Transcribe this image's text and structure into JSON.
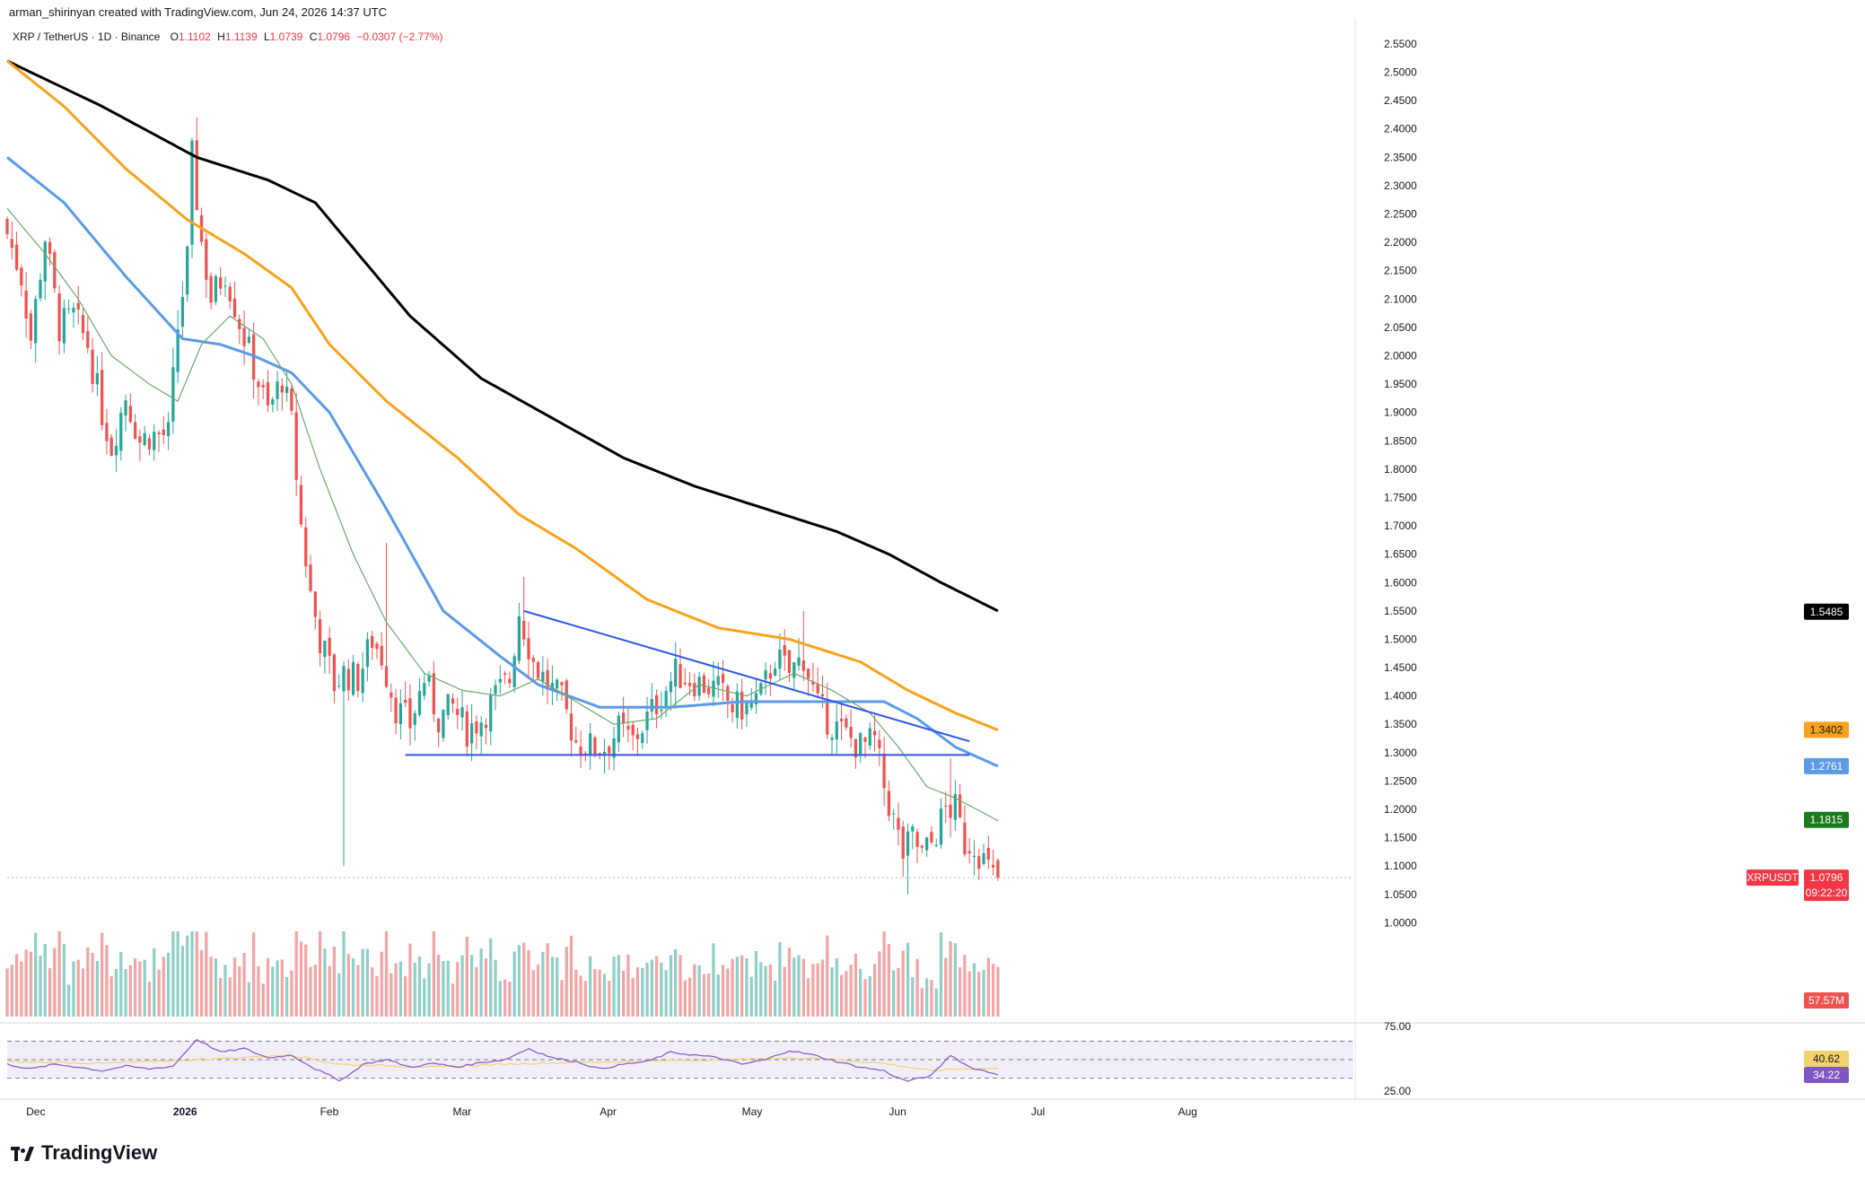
{
  "header": {
    "credit": "arman_shirinyan created with TradingView.com, Jun 24, 2026 14:37 UTC",
    "pair": "XRP / TetherUS · 1D · Binance",
    "open_label": "O",
    "open": "1.1102",
    "high_label": "H",
    "high": "1.1139",
    "low_label": "L",
    "low": "1.0739",
    "close_label": "C",
    "close": "1.0796",
    "change": "−0.0307 (−2.77%)"
  },
  "brand": {
    "name": "TradingView"
  },
  "colors": {
    "bull": "#26a69a",
    "bear": "#ef5350",
    "vol_bull": "#8fcfc7",
    "vol_bear": "#f3a4a4",
    "ma200": "#000000",
    "ma100": "#f7a21b",
    "ma50": "#5b9ae6",
    "ma20": "#6aa86a",
    "trend": "#2f54eb",
    "rsi": "#7e57c2",
    "rsi_ma": "#f2d36b"
  },
  "chart_data": {
    "type": "candlestick",
    "symbol": "XRPUSDT",
    "timeframe": "1D",
    "y_scale": "linear",
    "ylim": [
      0.95,
      2.58
    ],
    "y_ticks": [
      "2.5500",
      "2.5000",
      "2.4500",
      "2.4000",
      "2.3500",
      "2.3000",
      "2.2500",
      "2.2000",
      "2.1500",
      "2.1000",
      "2.0500",
      "2.0000",
      "1.9500",
      "1.9000",
      "1.8500",
      "1.8000",
      "1.7500",
      "1.7000",
      "1.6500",
      "1.6000",
      "1.5500",
      "1.5000",
      "1.4500",
      "1.4000",
      "1.3500",
      "1.3000",
      "1.2500",
      "1.2000",
      "1.1500",
      "1.1000",
      "1.0500",
      "1.0000"
    ],
    "x_ticks": [
      {
        "label": "Dec",
        "day": 4
      },
      {
        "label": "2026",
        "day": 35
      },
      {
        "label": "Feb",
        "day": 66
      },
      {
        "label": "Mar",
        "day": 94
      },
      {
        "label": "Apr",
        "day": 125
      },
      {
        "label": "May",
        "day": 155
      },
      {
        "label": "Jun",
        "day": 186
      },
      {
        "label": "Jul",
        "day": 216
      },
      {
        "label": "Aug",
        "day": 247
      }
    ],
    "x_range_days": [
      0,
      284
    ],
    "last_candle_day": 209,
    "price_anchors": [
      [
        0,
        2.24
      ],
      [
        4,
        2.14
      ],
      [
        6,
        2.03
      ],
      [
        9,
        2.21
      ],
      [
        12,
        2.05
      ],
      [
        15,
        2.07
      ],
      [
        18,
        2.02
      ],
      [
        21,
        1.9
      ],
      [
        23,
        1.84
      ],
      [
        26,
        1.93
      ],
      [
        29,
        1.85
      ],
      [
        31,
        1.86
      ],
      [
        35,
        1.86
      ],
      [
        37,
        2.05
      ],
      [
        39,
        2.17
      ],
      [
        40,
        2.35
      ],
      [
        42,
        2.2
      ],
      [
        44,
        2.1
      ],
      [
        47,
        2.15
      ],
      [
        50,
        2.06
      ],
      [
        53,
        1.98
      ],
      [
        56,
        1.9
      ],
      [
        59,
        1.96
      ],
      [
        61,
        1.88
      ],
      [
        63,
        1.7
      ],
      [
        65,
        1.58
      ],
      [
        67,
        1.5
      ],
      [
        69,
        1.45
      ],
      [
        70,
        1.42
      ],
      [
        72,
        1.44
      ],
      [
        75,
        1.43
      ],
      [
        78,
        1.5
      ],
      [
        80,
        1.47
      ],
      [
        83,
        1.38
      ],
      [
        86,
        1.35
      ],
      [
        89,
        1.43
      ],
      [
        92,
        1.36
      ],
      [
        95,
        1.38
      ],
      [
        98,
        1.34
      ],
      [
        101,
        1.36
      ],
      [
        104,
        1.4
      ],
      [
        107,
        1.43
      ],
      [
        109,
        1.55
      ],
      [
        112,
        1.46
      ],
      [
        115,
        1.42
      ],
      [
        118,
        1.39
      ],
      [
        121,
        1.32
      ],
      [
        124,
        1.31
      ],
      [
        127,
        1.31
      ],
      [
        130,
        1.34
      ],
      [
        133,
        1.32
      ],
      [
        136,
        1.36
      ],
      [
        139,
        1.4
      ],
      [
        142,
        1.44
      ],
      [
        145,
        1.43
      ],
      [
        148,
        1.42
      ],
      [
        151,
        1.41
      ],
      [
        154,
        1.38
      ],
      [
        157,
        1.38
      ],
      [
        160,
        1.4
      ],
      [
        163,
        1.47
      ],
      [
        166,
        1.44
      ],
      [
        169,
        1.47
      ],
      [
        172,
        1.38
      ],
      [
        175,
        1.35
      ],
      [
        178,
        1.33
      ],
      [
        181,
        1.31
      ],
      [
        184,
        1.32
      ],
      [
        186,
        1.24
      ],
      [
        188,
        1.18
      ],
      [
        190,
        1.12
      ],
      [
        192,
        1.15
      ],
      [
        194,
        1.12
      ],
      [
        196,
        1.14
      ],
      [
        199,
        1.2
      ],
      [
        201,
        1.2
      ],
      [
        203,
        1.14
      ],
      [
        205,
        1.14
      ],
      [
        207,
        1.11
      ],
      [
        209,
        1.08
      ]
    ],
    "wick_extremes": [
      {
        "day": 40,
        "high": 2.42
      },
      {
        "day": 71,
        "low": 1.1
      },
      {
        "day": 71,
        "high": 1.46
      },
      {
        "day": 80,
        "high": 1.67
      },
      {
        "day": 109,
        "high": 1.61
      },
      {
        "day": 168,
        "high": 1.55
      },
      {
        "day": 190,
        "low": 1.05
      },
      {
        "day": 199,
        "high": 1.29
      }
    ],
    "moving_averages": [
      {
        "period": 200,
        "color": "ma200",
        "last": "1.5485",
        "points": [
          [
            0,
            2.52
          ],
          [
            20,
            2.44
          ],
          [
            40,
            2.35
          ],
          [
            55,
            2.31
          ],
          [
            65,
            2.27
          ],
          [
            72,
            2.2
          ],
          [
            85,
            2.07
          ],
          [
            100,
            1.96
          ],
          [
            115,
            1.89
          ],
          [
            130,
            1.82
          ],
          [
            145,
            1.77
          ],
          [
            160,
            1.73
          ],
          [
            175,
            1.69
          ],
          [
            186,
            1.65
          ],
          [
            197,
            1.6
          ],
          [
            209,
            1.55
          ]
        ]
      },
      {
        "period": 100,
        "color": "ma100",
        "last": "1.3402",
        "points": [
          [
            0,
            2.52
          ],
          [
            12,
            2.44
          ],
          [
            25,
            2.33
          ],
          [
            38,
            2.24
          ],
          [
            50,
            2.18
          ],
          [
            60,
            2.12
          ],
          [
            68,
            2.02
          ],
          [
            80,
            1.92
          ],
          [
            95,
            1.82
          ],
          [
            108,
            1.72
          ],
          [
            120,
            1.66
          ],
          [
            135,
            1.57
          ],
          [
            150,
            1.52
          ],
          [
            165,
            1.5
          ],
          [
            180,
            1.46
          ],
          [
            190,
            1.41
          ],
          [
            200,
            1.37
          ],
          [
            209,
            1.34
          ]
        ]
      },
      {
        "period": 50,
        "color": "ma50",
        "last": "1.2761",
        "points": [
          [
            0,
            2.35
          ],
          [
            12,
            2.27
          ],
          [
            25,
            2.14
          ],
          [
            37,
            2.03
          ],
          [
            45,
            2.02
          ],
          [
            52,
            2.0
          ],
          [
            60,
            1.97
          ],
          [
            68,
            1.9
          ],
          [
            80,
            1.73
          ],
          [
            92,
            1.55
          ],
          [
            104,
            1.47
          ],
          [
            112,
            1.42
          ],
          [
            125,
            1.38
          ],
          [
            140,
            1.38
          ],
          [
            155,
            1.39
          ],
          [
            165,
            1.39
          ],
          [
            175,
            1.39
          ],
          [
            185,
            1.39
          ],
          [
            192,
            1.36
          ],
          [
            200,
            1.31
          ],
          [
            209,
            1.276
          ]
        ]
      },
      {
        "period": 20,
        "color": "ma20",
        "last": "1.1815",
        "points": [
          [
            0,
            2.26
          ],
          [
            8,
            2.18
          ],
          [
            15,
            2.1
          ],
          [
            22,
            2.0
          ],
          [
            30,
            1.95
          ],
          [
            36,
            1.92
          ],
          [
            41,
            2.02
          ],
          [
            47,
            2.07
          ],
          [
            54,
            2.03
          ],
          [
            60,
            1.95
          ],
          [
            66,
            1.8
          ],
          [
            73,
            1.65
          ],
          [
            80,
            1.53
          ],
          [
            88,
            1.44
          ],
          [
            96,
            1.41
          ],
          [
            104,
            1.4
          ],
          [
            112,
            1.43
          ],
          [
            120,
            1.39
          ],
          [
            128,
            1.35
          ],
          [
            137,
            1.36
          ],
          [
            146,
            1.42
          ],
          [
            156,
            1.4
          ],
          [
            166,
            1.44
          ],
          [
            174,
            1.41
          ],
          [
            182,
            1.37
          ],
          [
            188,
            1.31
          ],
          [
            194,
            1.24
          ],
          [
            200,
            1.22
          ],
          [
            209,
            1.18
          ]
        ]
      }
    ],
    "trendlines": [
      {
        "name": "descending resistance",
        "from": [
          109,
          1.55
        ],
        "to": [
          203,
          1.32
        ]
      },
      {
        "name": "horizontal support",
        "from": [
          84,
          1.296
        ],
        "to": [
          203,
          1.296
        ]
      }
    ],
    "price_labels": [
      {
        "text": "1.5485",
        "value": 1.5485,
        "color": "ma200"
      },
      {
        "text": "1.3402",
        "value": 1.3402,
        "color": "ma100"
      },
      {
        "text": "1.2761",
        "value": 1.2761,
        "color": "ma50"
      },
      {
        "text": "1.1815",
        "value": 1.1815,
        "color": "ma20"
      },
      {
        "text": "XRPUSDT",
        "value": 1.0796,
        "color": "bear"
      },
      {
        "text": "1.0796",
        "value": 1.0796,
        "color": "bear"
      },
      {
        "text": "09:22:20",
        "value": 1.0796,
        "color": "bear"
      }
    ],
    "volume": {
      "last_label": "57.57M",
      "max_rel": 1.0
    },
    "rsi": {
      "ticks": [
        "75.00",
        "25.00"
      ],
      "upper": 70,
      "lower": 30,
      "last_rsi": "34.22",
      "last_rsi_ma": "40.62",
      "points": [
        [
          0,
          45
        ],
        [
          5,
          40
        ],
        [
          10,
          45
        ],
        [
          15,
          42
        ],
        [
          20,
          38
        ],
        [
          25,
          43
        ],
        [
          30,
          40
        ],
        [
          35,
          43
        ],
        [
          40,
          72
        ],
        [
          45,
          58
        ],
        [
          50,
          62
        ],
        [
          55,
          52
        ],
        [
          60,
          55
        ],
        [
          65,
          40
        ],
        [
          70,
          28
        ],
        [
          72,
          33
        ],
        [
          75,
          45
        ],
        [
          80,
          50
        ],
        [
          85,
          42
        ],
        [
          90,
          46
        ],
        [
          95,
          42
        ],
        [
          100,
          47
        ],
        [
          105,
          50
        ],
        [
          110,
          62
        ],
        [
          115,
          52
        ],
        [
          120,
          48
        ],
        [
          125,
          40
        ],
        [
          130,
          45
        ],
        [
          135,
          48
        ],
        [
          140,
          58
        ],
        [
          145,
          55
        ],
        [
          150,
          52
        ],
        [
          155,
          45
        ],
        [
          160,
          50
        ],
        [
          165,
          60
        ],
        [
          170,
          55
        ],
        [
          175,
          48
        ],
        [
          180,
          42
        ],
        [
          185,
          38
        ],
        [
          188,
          30
        ],
        [
          190,
          27
        ],
        [
          195,
          33
        ],
        [
          199,
          55
        ],
        [
          203,
          42
        ],
        [
          209,
          34
        ]
      ],
      "ma_points": [
        [
          0,
          48
        ],
        [
          20,
          46
        ],
        [
          40,
          50
        ],
        [
          60,
          55
        ],
        [
          70,
          45
        ],
        [
          90,
          42
        ],
        [
          110,
          46
        ],
        [
          130,
          48
        ],
        [
          150,
          50
        ],
        [
          170,
          52
        ],
        [
          185,
          46
        ],
        [
          195,
          38
        ],
        [
          200,
          40
        ],
        [
          209,
          40.6
        ]
      ]
    }
  }
}
